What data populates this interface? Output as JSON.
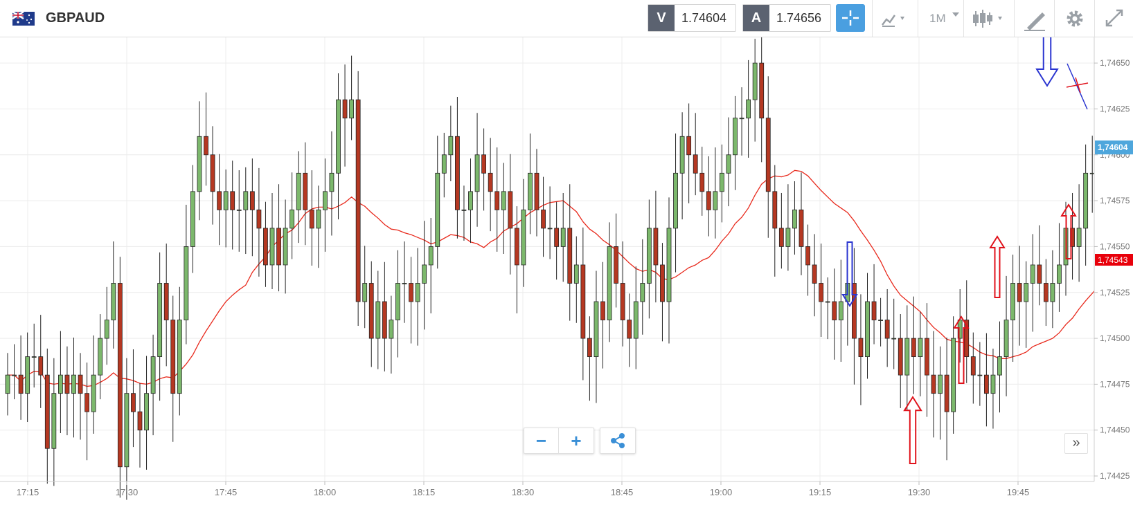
{
  "toolbar": {
    "symbol": "GBPAUD",
    "bid_label": "V",
    "bid_value": "1.74604",
    "ask_label": "A",
    "ask_value": "1.74656",
    "timeframe": "1M",
    "icons": [
      "uk-australia-flag-icon",
      "crosshair-icon",
      "chart-type-icon",
      "candlestick-icon",
      "drawing-tool-icon",
      "gear-icon",
      "expand-icon"
    ]
  },
  "controls": {
    "zoom_out": "−",
    "zoom_in": "+",
    "expand": "»"
  },
  "colors": {
    "up": "#7cb86c",
    "down": "#b53822",
    "ma": "#e8291c",
    "current_price": "#4ea6dc",
    "ma_tag": "#e8000b",
    "blue_arrow": "#2a35d0",
    "red_arrow": "#e0121b",
    "black_arrow": "#000000"
  },
  "chart_data": {
    "type": "candlestick",
    "pair": "GBPAUD",
    "timeframe": "1M",
    "x_ticks": [
      "17:15",
      "17:30",
      "17:45",
      "18:00",
      "18:15",
      "18:30",
      "18:45",
      "19:00",
      "19:15",
      "19:30",
      "19:45"
    ],
    "y_ticks": [
      "1,74425",
      "1,74450",
      "1,74475",
      "1,74500",
      "1,74525",
      "1,74550",
      "1,74575",
      "1,74600",
      "1,74625",
      "1,74650"
    ],
    "ylim": [
      1.74422,
      1.74664
    ],
    "current_price": "1,74604",
    "ma_value": "1,74543",
    "grid": true,
    "closes": [
      1.7448,
      1.7448,
      1.7447,
      1.7449,
      1.7449,
      1.7448,
      1.7444,
      1.7447,
      1.7448,
      1.7447,
      1.7448,
      1.7447,
      1.7446,
      1.7448,
      1.745,
      1.7451,
      1.7453,
      1.7443,
      1.7447,
      1.7446,
      1.7445,
      1.7447,
      1.7449,
      1.7453,
      1.7451,
      1.7447,
      1.7451,
      1.7455,
      1.7458,
      1.7461,
      1.746,
      1.7458,
      1.7457,
      1.7458,
      1.7457,
      1.7457,
      1.7458,
      1.7457,
      1.7456,
      1.7454,
      1.7456,
      1.7454,
      1.7456,
      1.7457,
      1.7459,
      1.7457,
      1.7456,
      1.7457,
      1.7458,
      1.7459,
      1.7463,
      1.7462,
      1.7463,
      1.7452,
      1.7453,
      1.745,
      1.7452,
      1.745,
      1.7451,
      1.7453,
      1.7453,
      1.7452,
      1.7453,
      1.7454,
      1.7455,
      1.7459,
      1.746,
      1.7461,
      1.7457,
      1.7457,
      1.7458,
      1.746,
      1.7459,
      1.7458,
      1.7457,
      1.7458,
      1.7456,
      1.7454,
      1.7457,
      1.7459,
      1.7457,
      1.7456,
      1.7456,
      1.7455,
      1.7456,
      1.7453,
      1.7454,
      1.745,
      1.7449,
      1.7452,
      1.7451,
      1.7455,
      1.7453,
      1.7451,
      1.745,
      1.7452,
      1.7453,
      1.7456,
      1.7454,
      1.7452,
      1.7456,
      1.7459,
      1.7461,
      1.746,
      1.7459,
      1.7458,
      1.7457,
      1.7458,
      1.7459,
      1.746,
      1.7462,
      1.7462,
      1.7463,
      1.7465,
      1.7462,
      1.7458,
      1.7456,
      1.7455,
      1.7456,
      1.7457,
      1.7455,
      1.7454,
      1.7453,
      1.7452,
      1.7452,
      1.7451,
      1.7452,
      1.7453,
      1.745,
      1.7449,
      1.7452,
      1.7451,
      1.7451,
      1.745,
      1.745,
      1.7448,
      1.745,
      1.7449,
      1.745,
      1.7448,
      1.7447,
      1.7448,
      1.7446,
      1.745,
      1.7451,
      1.7449,
      1.7448,
      1.7448,
      1.7447,
      1.7448,
      1.7449,
      1.7451,
      1.7453,
      1.7452,
      1.7453,
      1.7454,
      1.7453,
      1.7452,
      1.7453,
      1.7454,
      1.7456,
      1.7455,
      1.7456,
      1.7459,
      1.7459,
      1.7458,
      1.7459,
      1.7461,
      1.746,
      1.7459,
      1.7461,
      1.7464,
      1.7462,
      1.746,
      1.7459,
      1.7458,
      1.7458,
      1.7459,
      1.7461,
      1.7461,
      1.7462
    ]
  },
  "annotations": [
    {
      "name": "blue-down-arrow-1",
      "color": "blue",
      "direction": "down"
    },
    {
      "name": "blue-down-arrow-2",
      "color": "blue",
      "direction": "down"
    },
    {
      "name": "red-up-arrow-1",
      "color": "red",
      "direction": "up"
    },
    {
      "name": "red-up-arrow-2",
      "color": "red",
      "direction": "up"
    },
    {
      "name": "red-up-arrow-3",
      "color": "red",
      "direction": "up"
    },
    {
      "name": "red-up-arrow-4",
      "color": "red",
      "direction": "up"
    },
    {
      "name": "black-up-arrow",
      "color": "black",
      "direction": "up"
    }
  ]
}
